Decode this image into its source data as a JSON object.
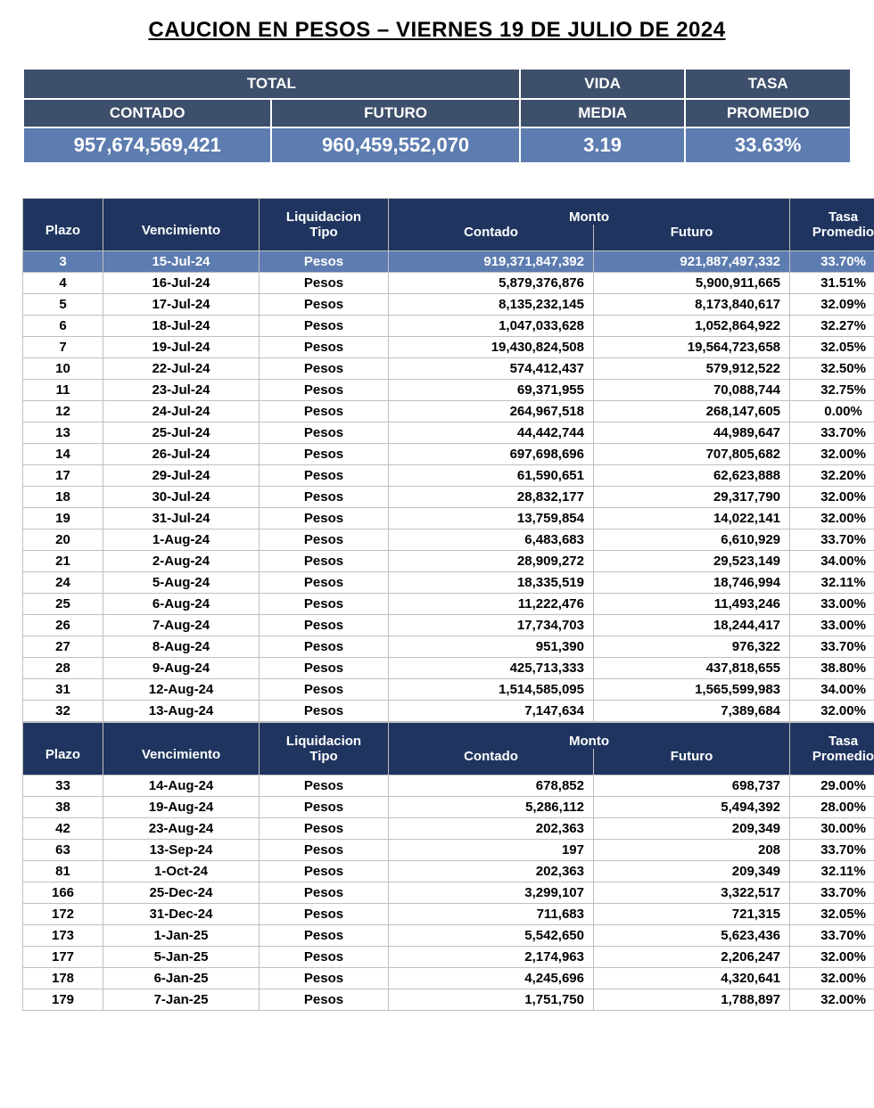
{
  "title": "CAUCION EN PESOS – VIERNES 19 DE JULIO DE 2024",
  "summary": {
    "headers": {
      "total": "TOTAL",
      "vida": "VIDA",
      "tasa": "TASA",
      "contado": "CONTADO",
      "futuro": "FUTURO",
      "media": "MEDIA",
      "promedio": "PROMEDIO"
    },
    "values": {
      "contado": "957,674,569,421",
      "futuro": "960,459,552,070",
      "vida_media": "3.19",
      "tasa_promedio": "33.63%"
    },
    "colors": {
      "header_bg": "#3d4f6b",
      "value_bg": "#5d7cb0",
      "text": "#ffffff"
    }
  },
  "detail": {
    "header_colors": {
      "bg": "#1f355f",
      "text": "#ffffff"
    },
    "highlight_colors": {
      "bg": "#5d7cb0",
      "text": "#ffffff"
    },
    "columns": {
      "plazo": "Plazo",
      "vencimiento": "Vencimiento",
      "liquidacion": "Liquidacion",
      "tipo": "Tipo",
      "monto": "Monto",
      "contado": "Contado",
      "futuro": "Futuro",
      "tasa": "Tasa",
      "promedio": "Promedio"
    },
    "rows1": [
      {
        "plazo": "3",
        "venc": "15-Jul-24",
        "tipo": "Pesos",
        "contado": "919,371,847,392",
        "futuro": "921,887,497,332",
        "tasa": "33.70%",
        "highlight": true
      },
      {
        "plazo": "4",
        "venc": "16-Jul-24",
        "tipo": "Pesos",
        "contado": "5,879,376,876",
        "futuro": "5,900,911,665",
        "tasa": "31.51%"
      },
      {
        "plazo": "5",
        "venc": "17-Jul-24",
        "tipo": "Pesos",
        "contado": "8,135,232,145",
        "futuro": "8,173,840,617",
        "tasa": "32.09%"
      },
      {
        "plazo": "6",
        "venc": "18-Jul-24",
        "tipo": "Pesos",
        "contado": "1,047,033,628",
        "futuro": "1,052,864,922",
        "tasa": "32.27%"
      },
      {
        "plazo": "7",
        "venc": "19-Jul-24",
        "tipo": "Pesos",
        "contado": "19,430,824,508",
        "futuro": "19,564,723,658",
        "tasa": "32.05%"
      },
      {
        "plazo": "10",
        "venc": "22-Jul-24",
        "tipo": "Pesos",
        "contado": "574,412,437",
        "futuro": "579,912,522",
        "tasa": "32.50%"
      },
      {
        "plazo": "11",
        "venc": "23-Jul-24",
        "tipo": "Pesos",
        "contado": "69,371,955",
        "futuro": "70,088,744",
        "tasa": "32.75%"
      },
      {
        "plazo": "12",
        "venc": "24-Jul-24",
        "tipo": "Pesos",
        "contado": "264,967,518",
        "futuro": "268,147,605",
        "tasa": "0.00%"
      },
      {
        "plazo": "13",
        "venc": "25-Jul-24",
        "tipo": "Pesos",
        "contado": "44,442,744",
        "futuro": "44,989,647",
        "tasa": "33.70%"
      },
      {
        "plazo": "14",
        "venc": "26-Jul-24",
        "tipo": "Pesos",
        "contado": "697,698,696",
        "futuro": "707,805,682",
        "tasa": "32.00%"
      },
      {
        "plazo": "17",
        "venc": "29-Jul-24",
        "tipo": "Pesos",
        "contado": "61,590,651",
        "futuro": "62,623,888",
        "tasa": "32.20%"
      },
      {
        "plazo": "18",
        "venc": "30-Jul-24",
        "tipo": "Pesos",
        "contado": "28,832,177",
        "futuro": "29,317,790",
        "tasa": "32.00%"
      },
      {
        "plazo": "19",
        "venc": "31-Jul-24",
        "tipo": "Pesos",
        "contado": "13,759,854",
        "futuro": "14,022,141",
        "tasa": "32.00%"
      },
      {
        "plazo": "20",
        "venc": "1-Aug-24",
        "tipo": "Pesos",
        "contado": "6,483,683",
        "futuro": "6,610,929",
        "tasa": "33.70%"
      },
      {
        "plazo": "21",
        "venc": "2-Aug-24",
        "tipo": "Pesos",
        "contado": "28,909,272",
        "futuro": "29,523,149",
        "tasa": "34.00%"
      },
      {
        "plazo": "24",
        "venc": "5-Aug-24",
        "tipo": "Pesos",
        "contado": "18,335,519",
        "futuro": "18,746,994",
        "tasa": "32.11%"
      },
      {
        "plazo": "25",
        "venc": "6-Aug-24",
        "tipo": "Pesos",
        "contado": "11,222,476",
        "futuro": "11,493,246",
        "tasa": "33.00%"
      },
      {
        "plazo": "26",
        "venc": "7-Aug-24",
        "tipo": "Pesos",
        "contado": "17,734,703",
        "futuro": "18,244,417",
        "tasa": "33.00%"
      },
      {
        "plazo": "27",
        "venc": "8-Aug-24",
        "tipo": "Pesos",
        "contado": "951,390",
        "futuro": "976,322",
        "tasa": "33.70%"
      },
      {
        "plazo": "28",
        "venc": "9-Aug-24",
        "tipo": "Pesos",
        "contado": "425,713,333",
        "futuro": "437,818,655",
        "tasa": "38.80%"
      },
      {
        "plazo": "31",
        "venc": "12-Aug-24",
        "tipo": "Pesos",
        "contado": "1,514,585,095",
        "futuro": "1,565,599,983",
        "tasa": "34.00%"
      },
      {
        "plazo": "32",
        "venc": "13-Aug-24",
        "tipo": "Pesos",
        "contado": "7,147,634",
        "futuro": "7,389,684",
        "tasa": "32.00%"
      }
    ],
    "rows2": [
      {
        "plazo": "33",
        "venc": "14-Aug-24",
        "tipo": "Pesos",
        "contado": "678,852",
        "futuro": "698,737",
        "tasa": "29.00%"
      },
      {
        "plazo": "38",
        "venc": "19-Aug-24",
        "tipo": "Pesos",
        "contado": "5,286,112",
        "futuro": "5,494,392",
        "tasa": "28.00%"
      },
      {
        "plazo": "42",
        "venc": "23-Aug-24",
        "tipo": "Pesos",
        "contado": "202,363",
        "futuro": "209,349",
        "tasa": "30.00%"
      },
      {
        "plazo": "63",
        "venc": "13-Sep-24",
        "tipo": "Pesos",
        "contado": "197",
        "futuro": "208",
        "tasa": "33.70%"
      },
      {
        "plazo": "81",
        "venc": "1-Oct-24",
        "tipo": "Pesos",
        "contado": "202,363",
        "futuro": "209,349",
        "tasa": "32.11%"
      },
      {
        "plazo": "166",
        "venc": "25-Dec-24",
        "tipo": "Pesos",
        "contado": "3,299,107",
        "futuro": "3,322,517",
        "tasa": "33.70%"
      },
      {
        "plazo": "172",
        "venc": "31-Dec-24",
        "tipo": "Pesos",
        "contado": "711,683",
        "futuro": "721,315",
        "tasa": "32.05%"
      },
      {
        "plazo": "173",
        "venc": "1-Jan-25",
        "tipo": "Pesos",
        "contado": "5,542,650",
        "futuro": "5,623,436",
        "tasa": "33.70%"
      },
      {
        "plazo": "177",
        "venc": "5-Jan-25",
        "tipo": "Pesos",
        "contado": "2,174,963",
        "futuro": "2,206,247",
        "tasa": "32.00%"
      },
      {
        "plazo": "178",
        "venc": "6-Jan-25",
        "tipo": "Pesos",
        "contado": "4,245,696",
        "futuro": "4,320,641",
        "tasa": "32.00%"
      },
      {
        "plazo": "179",
        "venc": "7-Jan-25",
        "tipo": "Pesos",
        "contado": "1,751,750",
        "futuro": "1,788,897",
        "tasa": "32.00%"
      }
    ]
  }
}
